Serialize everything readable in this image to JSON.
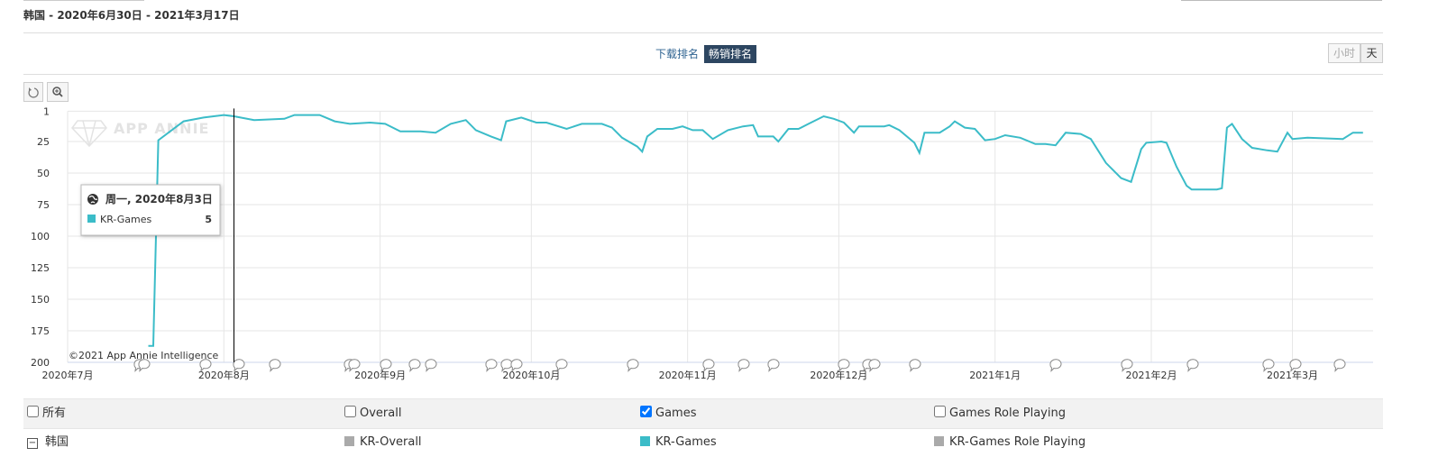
{
  "header": {
    "title": "韩国 - 2020年6月30日 - 2021年3月17日"
  },
  "toolbar": {
    "rank_options": [
      {
        "label": "下载排名",
        "active": false
      },
      {
        "label": "畅销排名",
        "active": true
      }
    ],
    "granularity": [
      {
        "label": "小时",
        "active": false
      },
      {
        "label": "天",
        "active": true
      }
    ]
  },
  "chart_data": {
    "type": "line",
    "watermark": "APP ANNIE",
    "credit": "©2021 App Annie Intelligence",
    "x": [
      "2020-07-17",
      "2020-07-18",
      "2020-07-19",
      "2020-07-24",
      "2020-07-28",
      "2020-08-01",
      "2020-08-03",
      "2020-08-07",
      "2020-08-13",
      "2020-08-15",
      "2020-08-20",
      "2020-08-23",
      "2020-08-26",
      "2020-08-30",
      "2020-09-02",
      "2020-09-05",
      "2020-09-09",
      "2020-09-12",
      "2020-09-15",
      "2020-09-18",
      "2020-09-20",
      "2020-09-23",
      "2020-09-25",
      "2020-09-26",
      "2020-09-29",
      "2020-10-02",
      "2020-10-04",
      "2020-10-08",
      "2020-10-11",
      "2020-10-15",
      "2020-10-17",
      "2020-10-19",
      "2020-10-22",
      "2020-10-23",
      "2020-10-24",
      "2020-10-26",
      "2020-10-29",
      "2020-10-31",
      "2020-11-02",
      "2020-11-04",
      "2020-11-06",
      "2020-11-09",
      "2020-11-12",
      "2020-11-14",
      "2020-11-15",
      "2020-11-18",
      "2020-11-19",
      "2020-11-21",
      "2020-11-23",
      "2020-11-25",
      "2020-11-28",
      "2020-11-30",
      "2020-12-02",
      "2020-12-04",
      "2020-12-05",
      "2020-12-10",
      "2020-12-11",
      "2020-12-13",
      "2020-12-16",
      "2020-12-17",
      "2020-12-18",
      "2020-12-21",
      "2020-12-23",
      "2020-12-24",
      "2020-12-26",
      "2020-12-28",
      "2020-12-30",
      "2021-01-01",
      "2021-01-03",
      "2021-01-06",
      "2021-01-09",
      "2021-01-11",
      "2021-01-13",
      "2021-01-15",
      "2021-01-18",
      "2021-01-20",
      "2021-01-23",
      "2021-01-26",
      "2021-01-28",
      "2021-01-30",
      "2021-01-31",
      "2021-02-03",
      "2021-02-04",
      "2021-02-06",
      "2021-02-08",
      "2021-02-09",
      "2021-02-14",
      "2021-02-15",
      "2021-02-16",
      "2021-02-17",
      "2021-02-19",
      "2021-02-21",
      "2021-02-24",
      "2021-02-26",
      "2021-02-28",
      "2021-03-01",
      "2021-03-04",
      "2021-03-11",
      "2021-03-13",
      "2021-03-15"
    ],
    "series": [
      {
        "name": "KR-Games",
        "color": "#3bbcc8",
        "values": [
          187,
          187,
          24,
          9,
          6,
          4,
          5,
          8,
          7,
          4,
          4,
          9,
          11,
          10,
          11,
          17,
          17,
          18,
          11,
          8,
          16,
          21,
          24,
          9,
          6,
          10,
          10,
          15,
          11,
          11,
          14,
          22,
          29,
          33,
          21,
          15,
          15,
          13,
          16,
          16,
          23,
          16,
          13,
          12,
          21,
          21,
          25,
          15,
          15,
          11,
          5,
          7,
          10,
          18,
          13,
          13,
          12,
          16,
          26,
          34,
          18,
          18,
          13,
          9,
          14,
          15,
          24,
          23,
          20,
          22,
          27,
          27,
          28,
          18,
          19,
          23,
          42,
          54,
          57,
          31,
          26,
          25,
          26,
          45,
          60,
          63,
          63,
          62,
          14,
          11,
          23,
          30,
          32,
          33,
          18,
          23,
          22,
          23,
          18,
          18
        ]
      }
    ],
    "xlim": [
      "2020-07-01",
      "2021-03-17"
    ],
    "xticks": [
      {
        "value": "2020-07-01",
        "label": "2020年7月"
      },
      {
        "value": "2020-08-01",
        "label": "2020年8月"
      },
      {
        "value": "2020-09-01",
        "label": "2020年9月"
      },
      {
        "value": "2020-10-01",
        "label": "2020年10月"
      },
      {
        "value": "2020-11-01",
        "label": "2020年11月"
      },
      {
        "value": "2020-12-01",
        "label": "2020年12月"
      },
      {
        "value": "2021-01-01",
        "label": "2021年1月"
      },
      {
        "value": "2021-02-01",
        "label": "2021年2月"
      },
      {
        "value": "2021-03-01",
        "label": "2021年3月"
      }
    ],
    "ylim": [
      1,
      200
    ],
    "y_reversed": true,
    "yticks": [
      1,
      25,
      50,
      75,
      100,
      125,
      150,
      175,
      200
    ],
    "grid": true,
    "tooltip": {
      "x": "2020-08-03",
      "date": "周一, 2020年8月3日",
      "series": "KR-Games",
      "value": 5
    }
  },
  "filters": {
    "options": [
      {
        "label": "所有",
        "checked": false
      },
      {
        "label": "Overall",
        "checked": false
      },
      {
        "label": "Games",
        "checked": true
      },
      {
        "label": "Games Role Playing",
        "checked": false
      }
    ]
  },
  "legend": {
    "group": "韩国",
    "items": [
      {
        "name": "KR-Overall",
        "color": "#aaaaaa"
      },
      {
        "name": "KR-Games Role Playing",
        "color": "#aaaaaa"
      }
    ]
  }
}
